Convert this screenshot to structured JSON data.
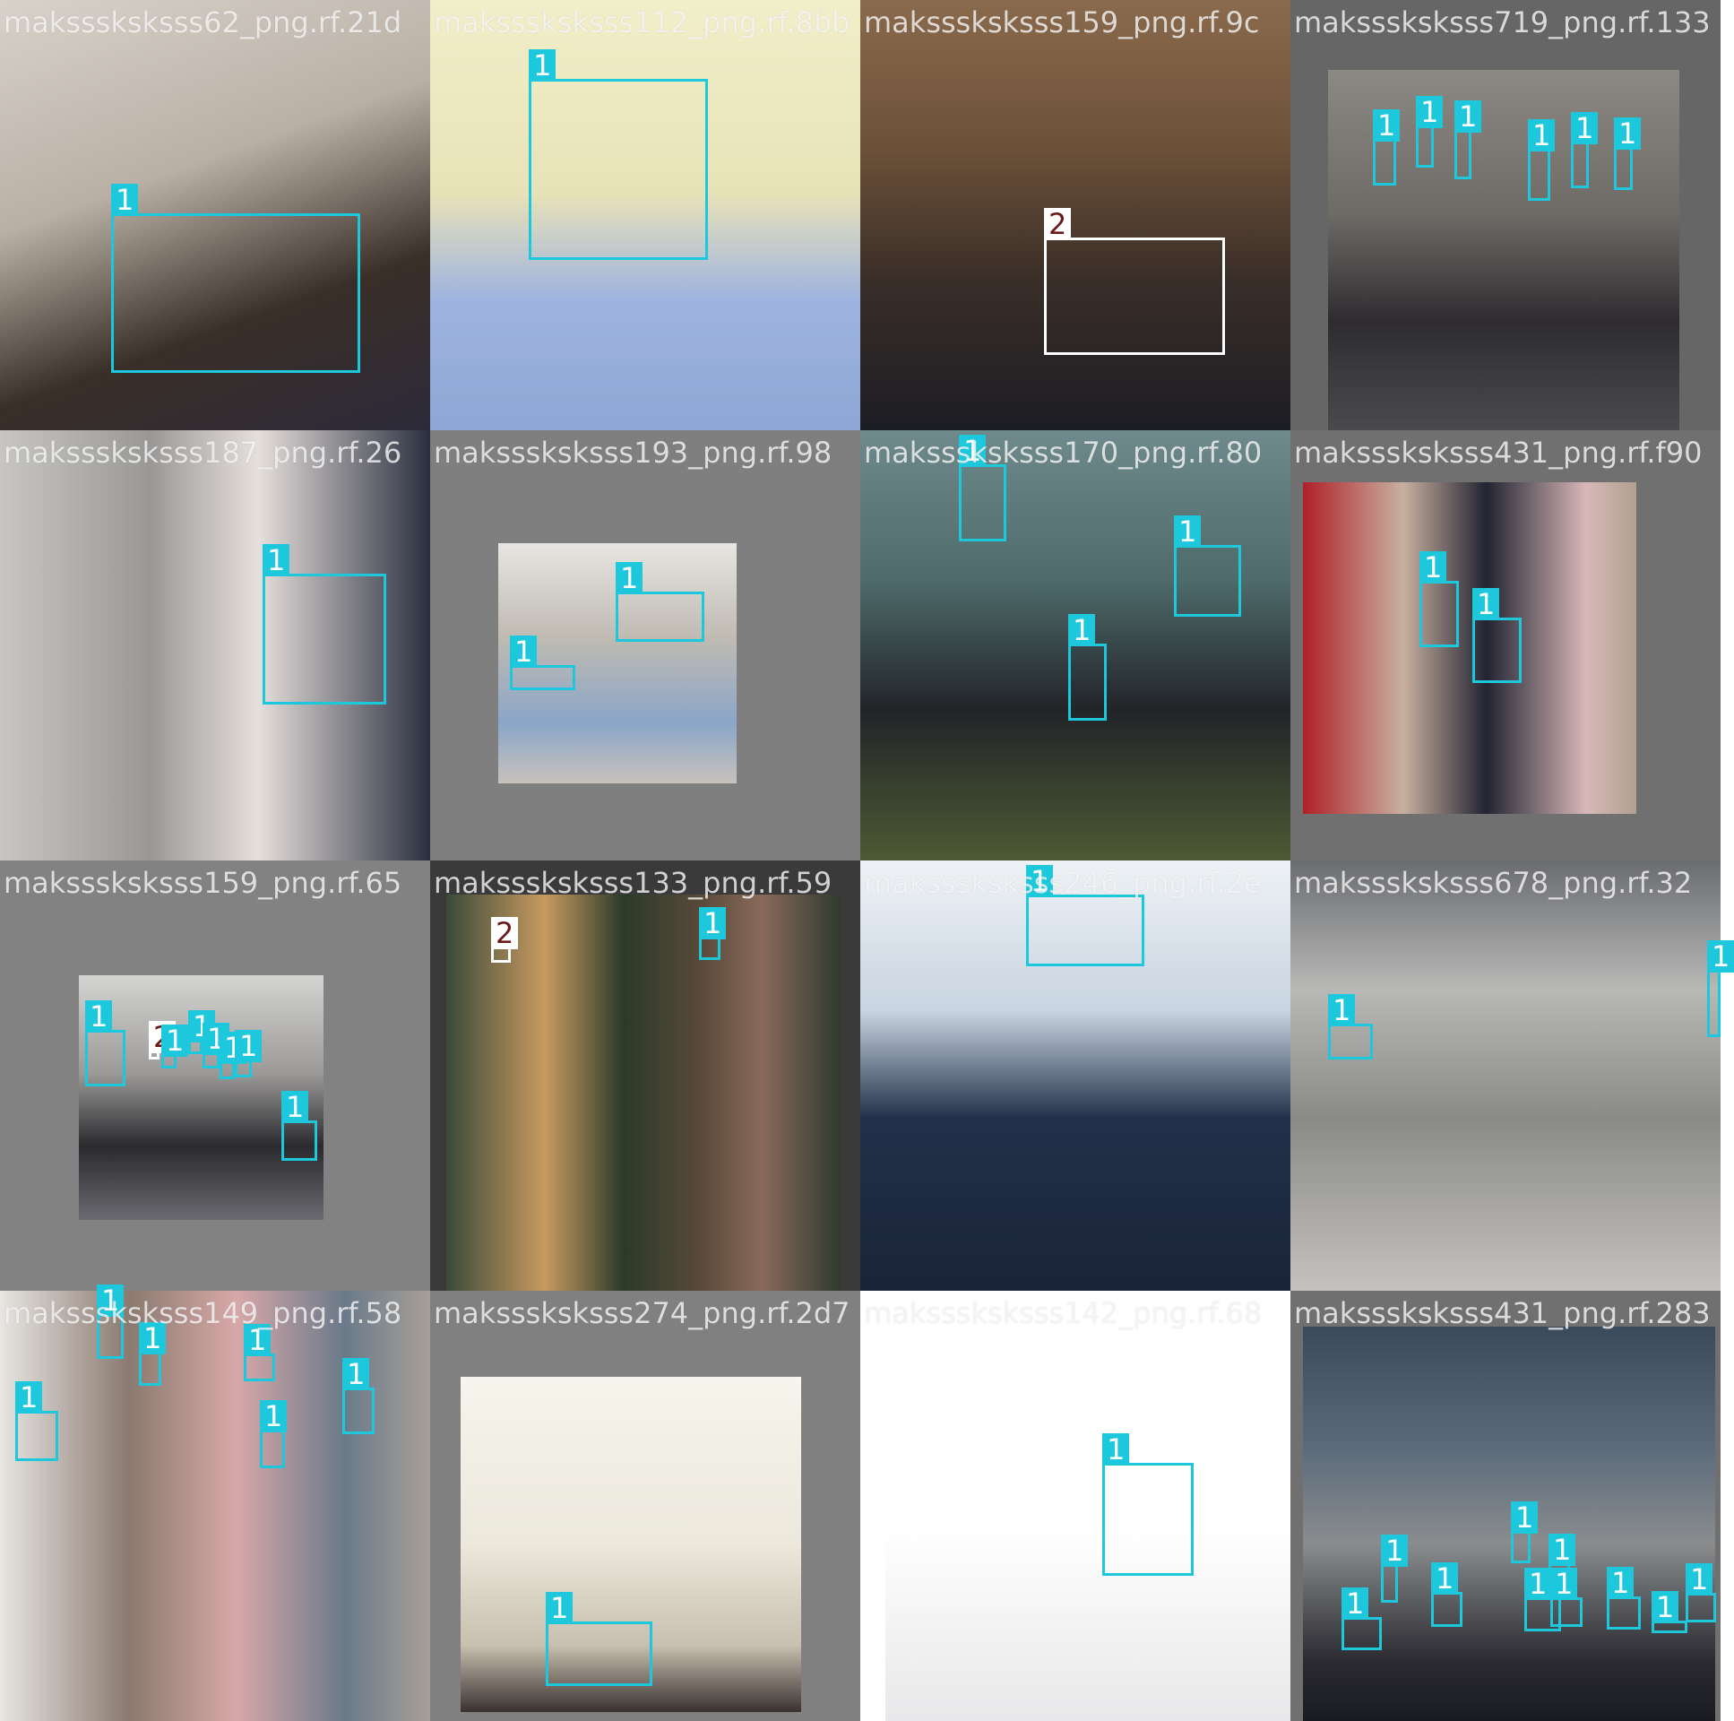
{
  "tiles": [
    {
      "caption": "maksssksksss62_png.rf.21d",
      "bg": "#c9c3bb",
      "photo": {
        "bg": "linear-gradient(160deg,#d8d2ca 0%,#b9b0a5 40%,#3a2f28 70%,#2c2a3a 100%)"
      },
      "boxes": [
        {
          "label": "1"
        }
      ]
    },
    {
      "caption": "maksssksksss112_png.rf.8bb",
      "bg": "#eae7c3",
      "photo": {
        "bg": "linear-gradient(180deg,#f1efc9 0%,#e8e2b8 45%,#9eb3e0 70%,#8fa6d6 100%)"
      },
      "boxes": [
        {
          "label": "1"
        }
      ]
    },
    {
      "caption": "maksssksksss159_png.rf.9c",
      "bg": "#5d4a3a",
      "photo": {
        "bg": "linear-gradient(180deg,#8a6a4c 0%,#6b5038 35%,#3a2e28 65%,#1c1d24 100%)"
      },
      "boxes": [
        {
          "label": "2"
        }
      ]
    },
    {
      "caption": "maksssksksss719_png.rf.133",
      "bg": "#666666",
      "photo": {
        "bg": "linear-gradient(180deg,#8c8882 0%,#6e6a66 40%,#2e2c30 70%,#4a4a4e 100%)"
      },
      "boxes": [
        {
          "label": "1"
        },
        {
          "label": "1"
        },
        {
          "label": "1"
        },
        {
          "label": "1"
        },
        {
          "label": "1"
        },
        {
          "label": "1"
        }
      ]
    },
    {
      "caption": "maksssksksss187_png.rf.26",
      "bg": "#b9b8b6",
      "photo": {
        "bg": "linear-gradient(90deg,#c8c6c2 0%,#9a9896 35%,#e6e0dc 60%,#2a2e3e 100%)"
      },
      "boxes": [
        {
          "label": "1"
        }
      ]
    },
    {
      "caption": "maksssksksss193_png.rf.98",
      "bg": "#7f7f7f",
      "photo": {
        "bg": "linear-gradient(180deg,#e8e6e2 0%,#bfbab2 40%,#8aa6c8 75%,#c8c2bc 100%)"
      },
      "boxes": [
        {
          "label": "1"
        },
        {
          "label": "1"
        }
      ]
    },
    {
      "caption": "maksssksksss170_png.rf.80",
      "bg": "#3d4a4e",
      "photo": {
        "bg": "linear-gradient(180deg,#6e8a8c 0%,#4e6a6a 35%,#222428 65%,#4c5a34 100%)"
      },
      "boxes": [
        {
          "label": "1"
        },
        {
          "label": "1"
        },
        {
          "label": "1"
        }
      ]
    },
    {
      "caption": "maksssksksss431_png.rf.f90",
      "bg": "#707070",
      "photo": {
        "bg": "linear-gradient(90deg,#b02028 0%,#c8b0a0 30%,#222432 55%,#d8b8b8 85%,#b0a090 100%)"
      },
      "boxes": [
        {
          "label": "1"
        },
        {
          "label": "1"
        }
      ]
    },
    {
      "caption": "maksssksksss159_png.rf.65",
      "bg": "#828282",
      "photo": {
        "bg": "linear-gradient(180deg,#d4d4d2 0%,#9c9a98 40%,#2a2a2e 70%,#6a6a70 100%)"
      },
      "boxes": [
        {
          "label": "1"
        },
        {
          "label": "2"
        },
        {
          "label": "1"
        },
        {
          "label": "1"
        },
        {
          "label": "1"
        },
        {
          "label": "1"
        },
        {
          "label": "1"
        },
        {
          "label": "1"
        }
      ]
    },
    {
      "caption": "maksssksksss133_png.rf.59",
      "bg": "#3a3a3a",
      "photo": {
        "bg": "linear-gradient(90deg,#3a4a3a 0%,#c89a60 25%,#2a3a2a 45%,#5a4a3a 65%,#8a6a5a 80%,#2e3a2e 100%)"
      },
      "boxes": [
        {
          "label": "2"
        },
        {
          "label": "1"
        }
      ]
    },
    {
      "caption": "maksssksksss246_png.rf.2e",
      "bg": "#dfe6ee",
      "photo": {
        "bg": "linear-gradient(180deg,#eef2f6 0%,#c8d4e0 35%,#22304a 60%,#1a2438 100%)"
      },
      "boxes": [
        {
          "label": "1"
        }
      ]
    },
    {
      "caption": "maksssksksss678_png.rf.32",
      "bg": "#8e9092",
      "photo": {
        "bg": "linear-gradient(180deg,#6a6c70 0%,#b8b8b6 30%,#8a8a88 60%,#c4c2be 100%)"
      },
      "boxes": [
        {
          "label": "1"
        },
        {
          "label": "1"
        }
      ]
    },
    {
      "caption": "maksssksksss149_png.rf.58",
      "bg": "#6a6460",
      "photo": {
        "bg": "linear-gradient(90deg,#e8e6e2 0%,#8a7a70 30%,#d8a8a8 55%,#6a7a8a 80%,#a8a098 100%)"
      },
      "boxes": [
        {
          "label": "1"
        },
        {
          "label": "1"
        },
        {
          "label": "1"
        },
        {
          "label": "1"
        },
        {
          "label": "1"
        },
        {
          "label": "1"
        }
      ]
    },
    {
      "caption": "maksssksksss274_png.rf.2d7",
      "bg": "#808080",
      "photo": {
        "bg": "linear-gradient(180deg,#f6f4ec 0%,#ece8dc 50%,#c8c0b0 80%,#3a3230 100%)"
      },
      "boxes": [
        {
          "label": "1"
        }
      ]
    },
    {
      "caption": "maksssksksss142_png.rf.68",
      "bg": "#ffffff",
      "photo": {
        "bg": "linear-gradient(180deg,#ffffff 0%,#ffffff 55%,#e8e8ea 100%)"
      },
      "boxes": [
        {
          "label": "1"
        }
      ]
    },
    {
      "caption": "maksssksksss431_png.rf.283",
      "bg": "#707070",
      "photo": {
        "bg": "linear-gradient(180deg,#3a4a5a 0%,#5a6a7a 30%,#8a8c8e 55%,#2a2a30 85%,#1a1a22 100%)"
      },
      "boxes": [
        {
          "label": "1"
        },
        {
          "label": "1"
        },
        {
          "label": "1"
        },
        {
          "label": "1"
        },
        {
          "label": "1"
        },
        {
          "label": "1"
        },
        {
          "label": "1"
        },
        {
          "label": "1"
        },
        {
          "label": "1"
        },
        {
          "label": "1"
        }
      ]
    }
  ]
}
